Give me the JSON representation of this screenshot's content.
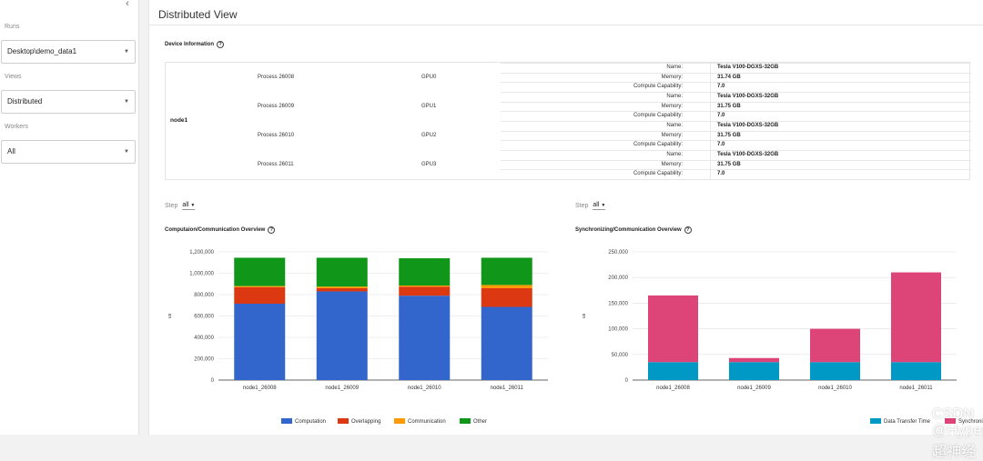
{
  "sidebar": {
    "collapse_icon": "‹",
    "runs": {
      "label": "Runs",
      "value": "Desktop\\demo_data1"
    },
    "views": {
      "label": "Views",
      "value": "Distributed"
    },
    "workers": {
      "label": "Workers",
      "value": "All"
    }
  },
  "page": {
    "title": "Distributed View"
  },
  "device_info": {
    "title": "Device Information",
    "node": "node1",
    "processes": [
      {
        "process": "Process 26008",
        "gpu": "GPU0",
        "name": "Tesla V100-DGXS-32GB",
        "memory": "31.74 GB",
        "compute": "7.0"
      },
      {
        "process": "Process 26009",
        "gpu": "GPU1",
        "name": "Tesla V100-DGXS-32GB",
        "memory": "31.75 GB",
        "compute": "7.0"
      },
      {
        "process": "Process 26010",
        "gpu": "GPU2",
        "name": "Tesla V100-DGXS-32GB",
        "memory": "31.75 GB",
        "compute": "7.0"
      },
      {
        "process": "Process 26011",
        "gpu": "GPU3",
        "name": "Tesla V100-DGXS-32GB",
        "memory": "31.75 GB",
        "compute": "7.0"
      }
    ],
    "keys": {
      "name": "Name:",
      "memory": "Memory:",
      "compute": "Compute Capability:"
    }
  },
  "step_left": {
    "label": "Step",
    "value": "all"
  },
  "step_right": {
    "label": "Step",
    "value": "all"
  },
  "watermark": "CSDN @HyperAI超神经",
  "colors": {
    "computation": "#3366cc",
    "overlapping": "#dc3912",
    "communication": "#ff9900",
    "other": "#109618",
    "transfer": "#0099c6",
    "sync": "#dd4477"
  },
  "chart_data": [
    {
      "type": "bar",
      "stacked": true,
      "title": "Computaion/Communication Overview",
      "ylabel": "us",
      "ylim": [
        0,
        1200000
      ],
      "yticks": [
        0,
        200000,
        400000,
        600000,
        800000,
        1000000,
        1200000
      ],
      "ytick_labels": [
        "0",
        "200,000",
        "400,000",
        "600,000",
        "800,000",
        "1,000,000",
        "1,200,000"
      ],
      "categories": [
        "node1_26008",
        "node1_26009",
        "node1_26010",
        "node1_26011"
      ],
      "series": [
        {
          "name": "Computation",
          "color": "#3366cc",
          "values": [
            715000,
            830000,
            790000,
            685000
          ]
        },
        {
          "name": "Overlapping",
          "color": "#dc3912",
          "values": [
            155000,
            30000,
            85000,
            175000
          ]
        },
        {
          "name": "Communication",
          "color": "#ff9900",
          "values": [
            10000,
            15000,
            10000,
            30000
          ]
        },
        {
          "name": "Other",
          "color": "#109618",
          "values": [
            265000,
            270000,
            255000,
            255000
          ]
        }
      ]
    },
    {
      "type": "bar",
      "stacked": true,
      "title": "Synchronizing/Communication Overview",
      "ylabel": "us",
      "ylim": [
        0,
        250000
      ],
      "yticks": [
        0,
        50000,
        100000,
        150000,
        200000,
        250000
      ],
      "ytick_labels": [
        "0",
        "50,000",
        "100,000",
        "150,000",
        "200,000",
        "250,000"
      ],
      "categories": [
        "node1_26008",
        "node1_26009",
        "node1_26010",
        "node1_26011"
      ],
      "series": [
        {
          "name": "Data Transfer Time",
          "color": "#0099c6",
          "values": [
            35000,
            35000,
            35000,
            35000
          ]
        },
        {
          "name": "Synchronizing Time",
          "color": "#dd4477",
          "values": [
            130000,
            8000,
            65000,
            175000
          ]
        }
      ]
    }
  ]
}
